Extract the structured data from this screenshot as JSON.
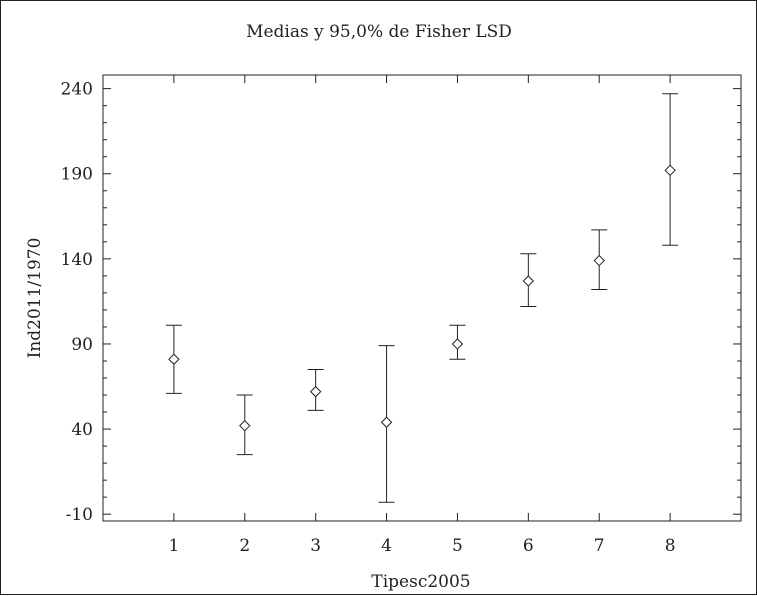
{
  "chart_data": {
    "type": "scatter",
    "title": "Medias y 95,0% de Fisher LSD",
    "xlabel": "Tipesc2005",
    "ylabel": "Ind2011/1970",
    "categories": [
      "1",
      "2",
      "3",
      "4",
      "5",
      "6",
      "7",
      "8"
    ],
    "series": [
      {
        "means": [
          81,
          42,
          62,
          44,
          90,
          127,
          139,
          192
        ],
        "lower": [
          61,
          25,
          51,
          -3,
          81,
          112,
          122,
          148
        ],
        "upper": [
          101,
          60,
          75,
          89,
          101,
          143,
          157,
          237
        ]
      }
    ],
    "yticks": [
      -10,
      40,
      90,
      140,
      190,
      240
    ],
    "ylim": [
      -14,
      248
    ],
    "xlim": [
      0,
      9
    ],
    "grid": false,
    "marker": "diamond",
    "colors": {
      "line": "#222222",
      "background": "#ffffff"
    }
  }
}
